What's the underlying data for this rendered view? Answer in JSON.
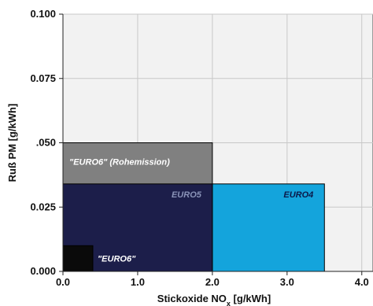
{
  "chart_data": {
    "type": "area",
    "xlabel": "Stickoxide NO",
    "xlabel_sub": "x",
    "xlabel_unit": " [g/kWh]",
    "ylabel": "Ruß PM [g/kWh]",
    "xlim": [
      0,
      4.0
    ],
    "ylim": [
      0,
      0.1
    ],
    "grid": true,
    "x_ticks": [
      {
        "value": 0,
        "label": "0.0"
      },
      {
        "value": 1,
        "label": "1.0"
      },
      {
        "value": 2,
        "label": "2.0"
      },
      {
        "value": 3,
        "label": "3.0"
      },
      {
        "value": 4,
        "label": "4.0"
      }
    ],
    "y_ticks": [
      {
        "value": 0,
        "label": "0.000"
      },
      {
        "value": 0.025,
        "label": "0.025"
      },
      {
        "value": 0.05,
        "label": ".050"
      },
      {
        "value": 0.075,
        "label": "0.075"
      },
      {
        "value": 0.1,
        "label": "0.100"
      }
    ],
    "regions": [
      {
        "name": "\"EURO6\" (Rohemission)",
        "x": [
          0,
          2.0
        ],
        "y": [
          0,
          0.05
        ],
        "color": "#808080",
        "label_color": "#ffffff",
        "label_anchor": "top"
      },
      {
        "name": "EURO4",
        "x": [
          2.0,
          3.5
        ],
        "y": [
          0,
          0.034
        ],
        "color": "#14a4dc",
        "label_color": "#0b1a4a",
        "label_anchor": "top-right"
      },
      {
        "name": "EURO5",
        "x": [
          0,
          2.0
        ],
        "y": [
          0,
          0.034
        ],
        "color": "#1c1e4a",
        "label_color": "#8a93b8",
        "label_anchor": "top-right"
      },
      {
        "name": "\"EURO6\"",
        "x": [
          0,
          0.4
        ],
        "y": [
          0,
          0.01
        ],
        "color": "#0a0a0a",
        "label_color": "#ffffff",
        "label_anchor": "outside-right"
      }
    ]
  }
}
